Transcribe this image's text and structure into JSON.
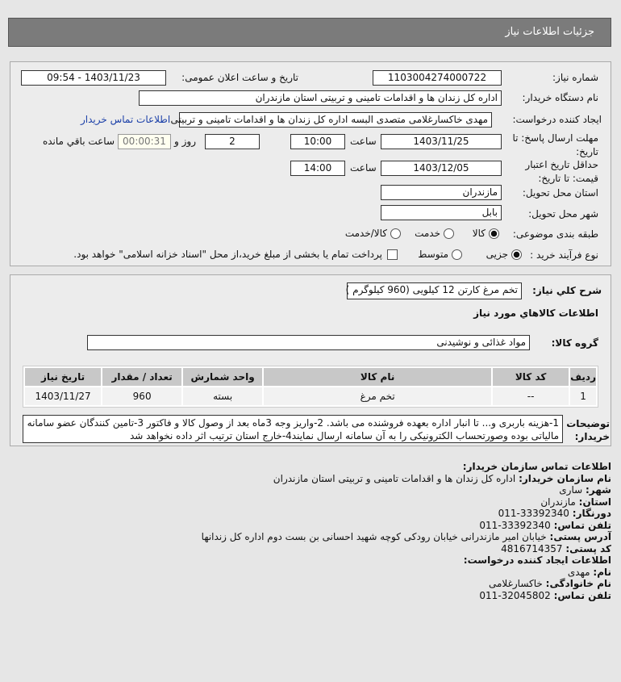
{
  "header": {
    "title": "جزئیات اطلاعات نیاز"
  },
  "form": {
    "need_number_label": "شماره نیاز:",
    "need_number": "1103004274000722",
    "announce_label": "تاریخ و ساعت اعلان عمومی:",
    "announce_value": "1403/11/23 - 09:54",
    "buyer_label": "نام دستگاه خریدار:",
    "buyer": "اداره کل زندان ها و اقدامات تامینی و تربیتی استان مازندران",
    "creator_label": "ایجاد کننده درخواست:",
    "creator": "مهدی خاکسارغلامی متصدی البسه اداره کل زندان ها و اقدامات تامینی و تربیتی",
    "contact_link": "اطلاعات تماس خریدار",
    "deadline_label": "مهلت ارسال پاسخ: تا تاریخ:",
    "deadline_date": "1403/11/25",
    "time_label": "ساعت",
    "deadline_time": "10:00",
    "days": "2",
    "days_label": "روز و",
    "remaining": "00:00:31",
    "remaining_label": "ساعت باقي مانده",
    "validity_label": "حداقل تاریخ اعتبار قیمت: تا تاریخ:",
    "validity_date": "1403/12/05",
    "validity_time": "14:00",
    "province_label": "استان محل تحویل:",
    "province": "مازندران",
    "city_label": "شهر محل تحویل:",
    "city": "بابل",
    "category_label": "طبقه بندی موضوعی:",
    "category_options": [
      "کالا",
      "خدمت",
      "کالا/خدمت"
    ],
    "category_selected": "کالا",
    "process_label": "نوع فرآیند خرید :",
    "process_options": [
      "جزیی",
      "متوسط"
    ],
    "process_selected": "جزیی",
    "payment_note": "پرداخت تمام یا بخشی از مبلغ خرید،از محل \"اسناد خزانه اسلامی\" خواهد بود."
  },
  "details": {
    "summary_label": "شرح کلي نياز:",
    "summary": "تخم مرغ کارتن 12 کیلویی (960 کیلوگرم )",
    "goods_title": "اطلاعات كالاهاي مورد نياز",
    "group_label": "گروه کالا:",
    "group": "مواد غذائی و نوشیدنی",
    "table": {
      "headers": [
        "ردیف",
        "کد کالا",
        "نام کالا",
        "واحد شمارش",
        "تعداد / مقدار",
        "تاریخ نیاز"
      ],
      "rows": [
        [
          "1",
          "--",
          "تخم مرغ",
          "بسته",
          "960",
          "1403/11/27"
        ]
      ]
    },
    "notes_label": "توضیحات خریدار:",
    "notes": "1-هزینه باربری و... تا انبار اداره بعهده فروشنده می باشد. 2-واریز وجه 3ماه بعد از وصول کالا و فاکتور 3-تامین کنندگان عضو سامانه مالیاتی بوده وصورتحساب الکترونیکی را به آن سامانه ارسال نمایند4-خارج استان ترتیب اثر داده نخواهد شد"
  },
  "contact": {
    "title": "اطلاعات تماس سازمان خریدار:",
    "org_label": "نام سازمان خریدار:",
    "org": "اداره کل زندان ها و اقدامات تامینی و تربیتی استان مازندران",
    "city_label": "شهر:",
    "city": "ساری",
    "province_label": "استان:",
    "province": "مازندران",
    "fax_label": "دورنگار:",
    "fax": "33392340-011",
    "phone_label": "تلفن تماس:",
    "phone": "33392340-011",
    "address_label": "آدرس پستی:",
    "address": "خیابان امیر مازندرانی خیابان رودکی کوچه شهید احسانی بن بست دوم اداره کل زندانها",
    "postal_label": "کد پستی:",
    "postal": "4816714357",
    "creator_title": "اطلاعات ایجاد کننده درخواست:",
    "name_label": "نام:",
    "name": "مهدی",
    "family_label": "نام خانوادگی:",
    "family": "خاکسارغلامی",
    "creator_phone_label": "تلفن تماس:",
    "creator_phone": "32045802-011"
  }
}
